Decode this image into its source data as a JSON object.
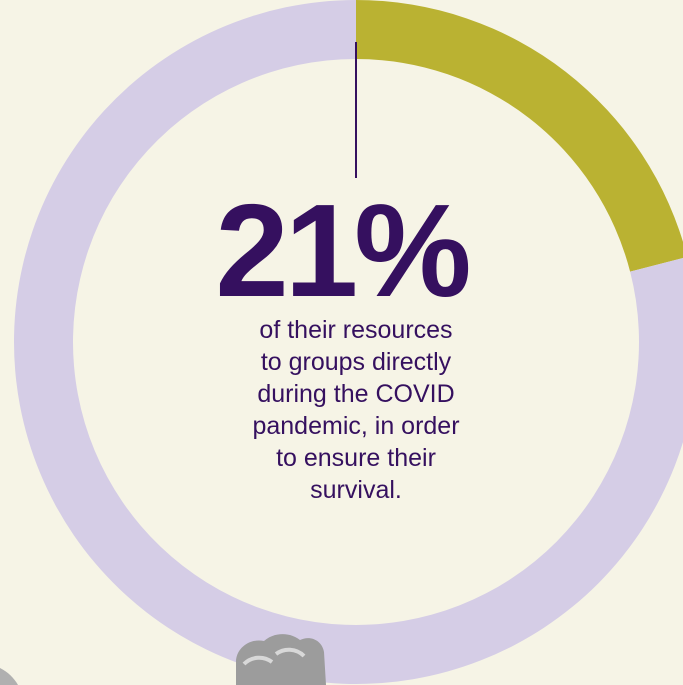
{
  "colors": {
    "background": "#f6f4e6",
    "ring_remaining": "#d5cde6",
    "ring_highlight": "#bab232",
    "text": "#35105f"
  },
  "chart_data": {
    "type": "pie",
    "style": "donut",
    "slices": [
      {
        "value": 21,
        "color": "#bab232"
      },
      {
        "value": 79,
        "color": "#d5cde6"
      }
    ],
    "highlight_label": "21%",
    "annotation": "of their resources\nto groups directly\nduring the COVID\npandemic, in order\nto ensure their\nsurvival."
  }
}
